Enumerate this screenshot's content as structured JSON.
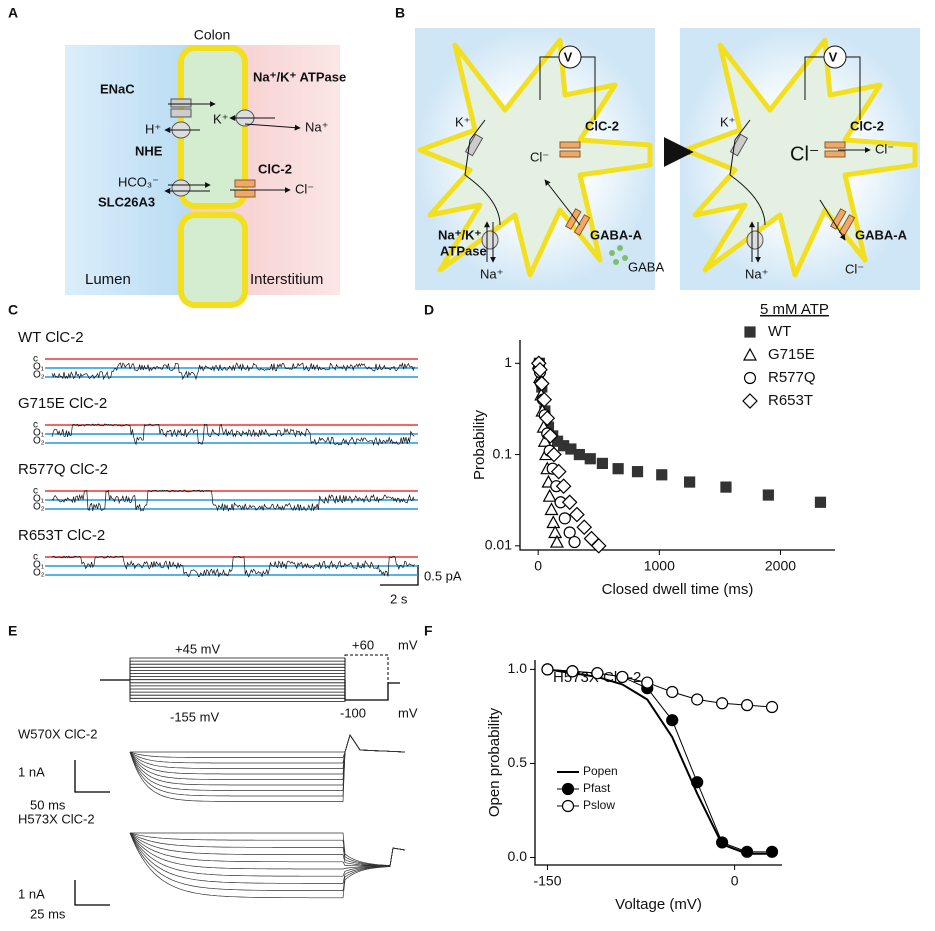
{
  "panels": {
    "labels": [
      "A",
      "B",
      "C",
      "D",
      "E",
      "F"
    ]
  },
  "colon_diagram": {
    "title": "Colon",
    "enac": "ENaC",
    "pump": "Na⁺/K⁺ ATPase",
    "k": "K⁺",
    "na": "Na⁺",
    "h": "H⁺",
    "nhe": "NHE",
    "hco3": "HCO₃⁻",
    "clc2": "ClC-2",
    "cl": "Cl⁻",
    "slc": "SLC26A3",
    "lumen": "Lumen",
    "interstitium": "Interstitium"
  },
  "neuron_diagram": {
    "left": {
      "voltmeter": "V",
      "k": "K⁺",
      "clc2": "ClC-2",
      "cl": "Cl⁻",
      "gaba_a": "GABA-A",
      "pump_1": "Na⁺/K⁺",
      "pump_2": "ATPase",
      "na": "Na⁺",
      "gaba": "GABA"
    },
    "right": {
      "voltmeter": "V",
      "k": "K⁺",
      "clc2": "ClC-2",
      "cl_in": "Cl⁻",
      "cl_out": "Cl⁻",
      "gaba_a": "GABA-A",
      "na": "Na⁺",
      "cl_bottom": "Cl⁻"
    }
  },
  "traces": {
    "rows": [
      "WT ClC-2",
      "G715E ClC-2",
      "R577Q ClC-2",
      "R653T ClC-2"
    ],
    "levels": [
      "c",
      "O₁",
      "O₂"
    ],
    "scale_current": "0.5 pA",
    "scale_time": "2 s"
  },
  "protocol": {
    "step_top": "+45 mV",
    "tail": "+60",
    "unit_top": "mV",
    "step_bottom": "-155 mV",
    "hold": "-100",
    "unit_bottom": "mV",
    "recordings": [
      {
        "label": "W570X ClC-2",
        "scale_current": "1 nA",
        "scale_time": "50 ms"
      },
      {
        "label": "H573X ClC-2",
        "scale_current": "1 nA",
        "scale_time": "25 ms"
      }
    ]
  },
  "chart_data": [
    {
      "type": "scatter",
      "ylabel": "Probability",
      "xlabel": "Closed dwell time (ms)",
      "log_y": true,
      "legend_title": "5 mM ATP",
      "legend": "upper right",
      "xlim": [
        -150,
        2450
      ],
      "ylim": [
        0.009,
        1.8
      ],
      "xticks": [
        0,
        1000,
        2000
      ],
      "yticks": [
        0.01,
        0.1,
        1
      ],
      "series": [
        {
          "name": "WT",
          "color": "#333333",
          "marker": "square",
          "filled": true,
          "x": [
            10,
            30,
            55,
            85,
            120,
            160,
            210,
            270,
            340,
            430,
            530,
            660,
            820,
            1020,
            1250,
            1550,
            1900,
            2330
          ],
          "values": [
            1,
            0.55,
            0.3,
            0.2,
            0.16,
            0.14,
            0.125,
            0.115,
            0.1,
            0.09,
            0.08,
            0.07,
            0.065,
            0.06,
            0.05,
            0.044,
            0.036,
            0.03
          ]
        },
        {
          "name": "G715E",
          "color": "#000000",
          "marker": "triangle",
          "filled": false,
          "x": [
            5,
            15,
            25,
            35,
            45,
            55,
            65,
            75,
            85,
            95,
            110,
            125,
            140,
            155
          ],
          "values": [
            1,
            0.7,
            0.45,
            0.3,
            0.2,
            0.14,
            0.1,
            0.07,
            0.05,
            0.035,
            0.025,
            0.018,
            0.014,
            0.011
          ]
        },
        {
          "name": "R577Q",
          "color": "#000000",
          "marker": "circle",
          "filled": false,
          "x": [
            5,
            15,
            25,
            40,
            55,
            75,
            95,
            120,
            150,
            185,
            220,
            260,
            300
          ],
          "values": [
            1,
            0.8,
            0.6,
            0.4,
            0.27,
            0.17,
            0.11,
            0.07,
            0.045,
            0.03,
            0.02,
            0.014,
            0.011
          ]
        },
        {
          "name": "R653T",
          "color": "#000000",
          "marker": "diamond",
          "filled": false,
          "x": [
            5,
            15,
            30,
            50,
            75,
            100,
            130,
            170,
            210,
            260,
            320,
            380,
            440,
            500
          ],
          "values": [
            1,
            0.85,
            0.6,
            0.4,
            0.25,
            0.16,
            0.1,
            0.065,
            0.045,
            0.03,
            0.022,
            0.016,
            0.012,
            0.01
          ]
        }
      ]
    },
    {
      "type": "line",
      "title": "H573X ClC-2",
      "ylabel": "Open probability",
      "xlabel": "Voltage (mV)",
      "legend": "center left",
      "xlim": [
        -160,
        38
      ],
      "ylim": [
        -0.04,
        1.05
      ],
      "xticks": [
        -150,
        0
      ],
      "yticks": [
        {
          "value": 0,
          "label": "0.0"
        },
        {
          "value": 0.5,
          "label": "0.5"
        },
        {
          "value": 1,
          "label": "1.0"
        }
      ],
      "x": [
        -150,
        -130,
        -110,
        -90,
        -70,
        -50,
        -30,
        -10,
        10,
        30
      ],
      "series": [
        {
          "name": "Popen",
          "color": "#000000",
          "marker": "none",
          "values": [
            1,
            0.98,
            0.96,
            0.92,
            0.84,
            0.64,
            0.34,
            0.07,
            0.02,
            0.02
          ]
        },
        {
          "name": "Pfast",
          "color": "#000000",
          "marker": "circle",
          "filled": true,
          "values": [
            1,
            0.99,
            0.98,
            0.96,
            0.9,
            0.73,
            0.4,
            0.08,
            0.03,
            0.03
          ]
        },
        {
          "name": "Pslow",
          "color": "#000000",
          "marker": "circle",
          "filled": false,
          "values": [
            1,
            0.99,
            0.98,
            0.96,
            0.93,
            0.88,
            0.84,
            0.82,
            0.81,
            0.8
          ]
        }
      ]
    }
  ]
}
